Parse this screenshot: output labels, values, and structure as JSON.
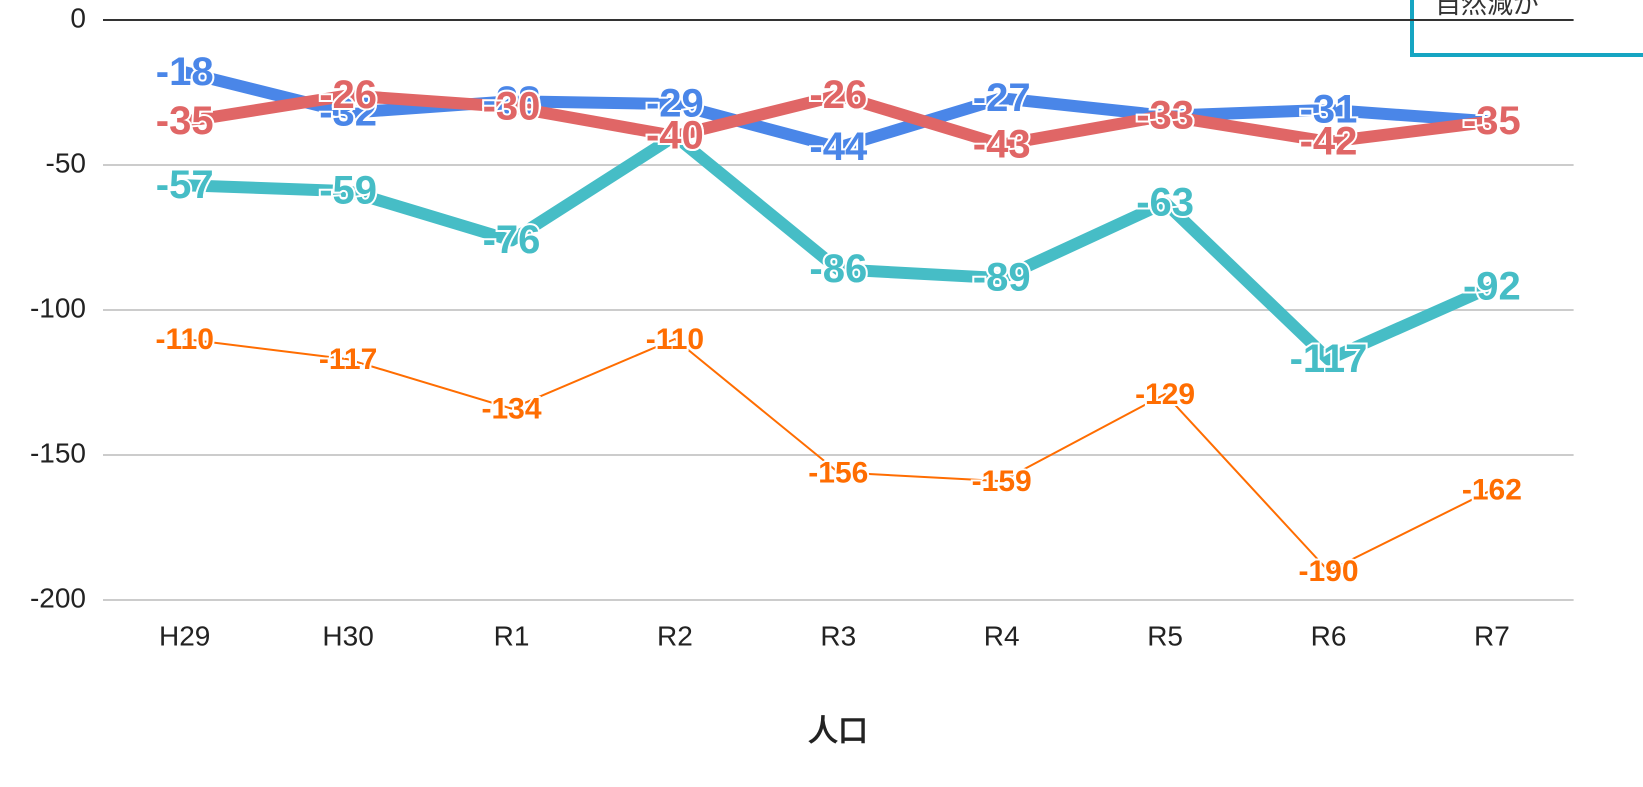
{
  "chart_data": {
    "type": "line",
    "x_label": "人口",
    "annotation": "自然減が",
    "categories": [
      "H29",
      "H30",
      "R1",
      "R2",
      "R3",
      "R4",
      "R5",
      "R6",
      "R7"
    ],
    "series": [
      {
        "color": "#ff6d01",
        "width": 2,
        "values": [
          -110,
          -117,
          -134,
          -110,
          -156,
          -159,
          -129,
          -190,
          -162
        ]
      },
      {
        "color": "#46bdc6",
        "width": 12,
        "values": [
          -57,
          -59,
          -76,
          -40,
          -86,
          -89,
          -63,
          -117,
          -92
        ]
      },
      {
        "color": "#4a86e8",
        "width": 12,
        "values": [
          -18,
          -32,
          -28,
          -29,
          -44,
          -27,
          -33,
          -31,
          -35
        ]
      },
      {
        "color": "#e06666",
        "width": 12,
        "values": [
          -35,
          -26,
          -30,
          -40,
          -26,
          -43,
          -33,
          -42,
          -35
        ]
      }
    ],
    "ylim": [
      -200,
      0
    ],
    "yticks": [
      -200,
      -150,
      -100,
      -50,
      0
    ],
    "grid": true
  }
}
